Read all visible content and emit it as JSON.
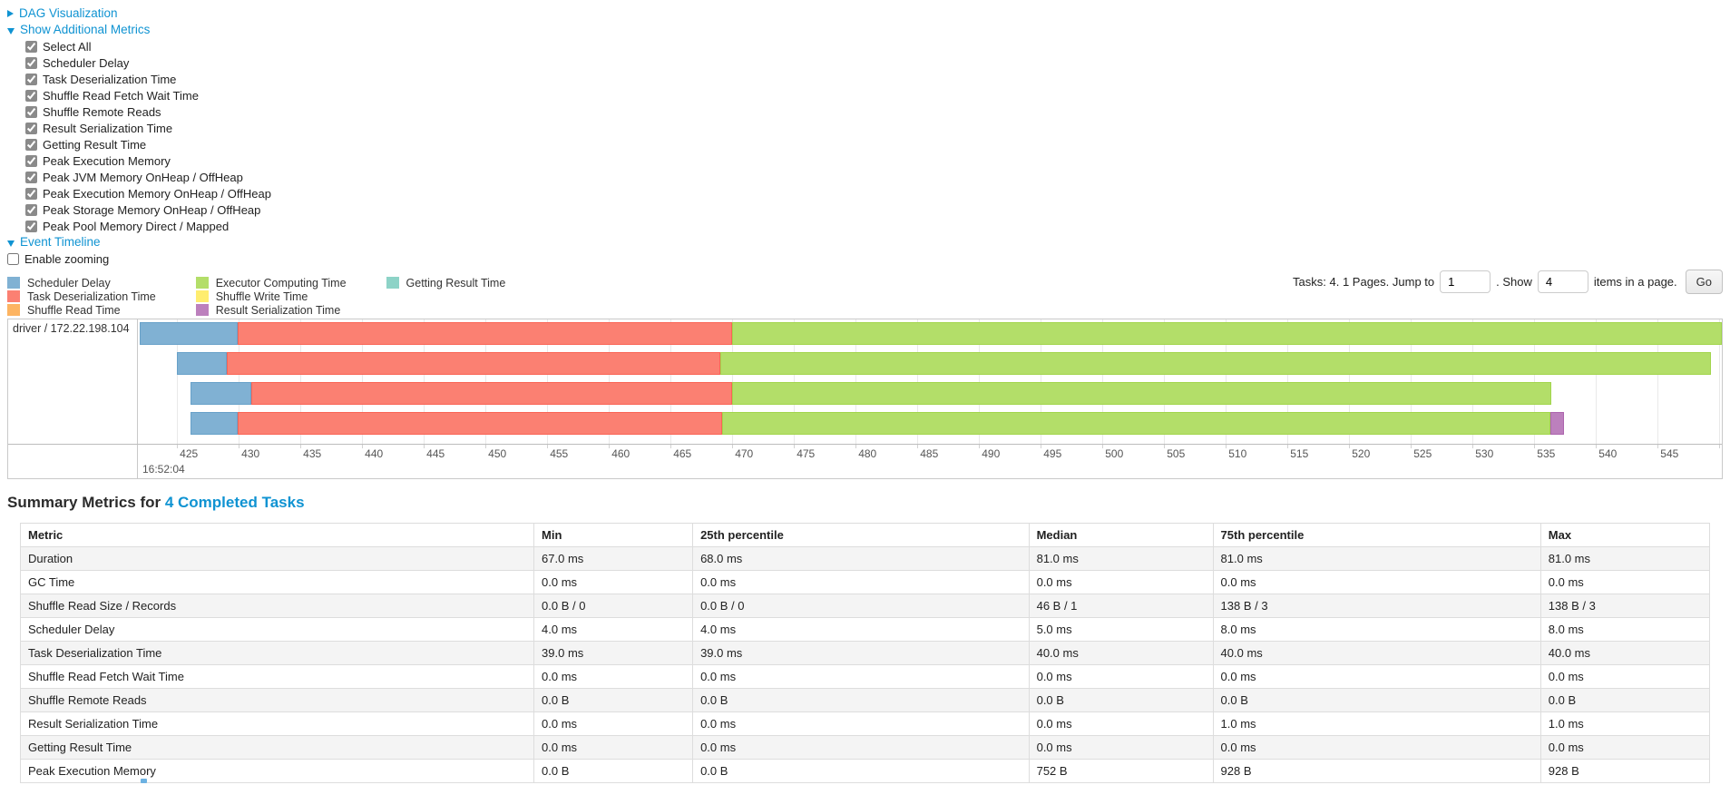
{
  "sections": {
    "dag": {
      "label": "DAG Visualization"
    },
    "additional_metrics": {
      "label": "Show Additional Metrics"
    },
    "metric_checkboxes": [
      {
        "label": "Select All",
        "checked": true
      },
      {
        "label": "Scheduler Delay",
        "checked": true
      },
      {
        "label": "Task Deserialization Time",
        "checked": true
      },
      {
        "label": "Shuffle Read Fetch Wait Time",
        "checked": true
      },
      {
        "label": "Shuffle Remote Reads",
        "checked": true
      },
      {
        "label": "Result Serialization Time",
        "checked": true
      },
      {
        "label": "Getting Result Time",
        "checked": true
      },
      {
        "label": "Peak Execution Memory",
        "checked": true
      },
      {
        "label": "Peak JVM Memory OnHeap / OffHeap",
        "checked": true
      },
      {
        "label": "Peak Execution Memory OnHeap / OffHeap",
        "checked": true
      },
      {
        "label": "Peak Storage Memory OnHeap / OffHeap",
        "checked": true
      },
      {
        "label": "Peak Pool Memory Direct / Mapped",
        "checked": true
      }
    ],
    "event_timeline": {
      "label": "Event Timeline"
    },
    "enable_zooming": {
      "label": "Enable zooming",
      "checked": false
    }
  },
  "pagination": {
    "prefix": "Tasks: 4. 1 Pages. Jump to",
    "jump_value": "1",
    "mid": ". Show",
    "show_value": "4",
    "suffix": "items in a page.",
    "go_label": "Go"
  },
  "legend": [
    {
      "type": "scheduler_delay",
      "label": "Scheduler Delay"
    },
    {
      "type": "task_deserialization",
      "label": "Task Deserialization Time"
    },
    {
      "type": "shuffle_read",
      "label": "Shuffle Read Time"
    },
    {
      "type": "executor_computing",
      "label": "Executor Computing Time"
    },
    {
      "type": "shuffle_write",
      "label": "Shuffle Write Time"
    },
    {
      "type": "result_serialization",
      "label": "Result Serialization Time"
    },
    {
      "type": "getting_result",
      "label": "Getting Result Time"
    }
  ],
  "colors": {
    "link": "#0f93d2",
    "segments": {
      "scheduler_delay": {
        "fill": "#80B1D3",
        "border": "#68a1c9"
      },
      "task_deserialization": {
        "fill": "#FB8072",
        "border": "#fa6455"
      },
      "shuffle_read": {
        "fill": "#FDB462",
        "border": "#fca53e"
      },
      "executor_computing": {
        "fill": "#B3DE69",
        "border": "#a2d54c"
      },
      "shuffle_write": {
        "fill": "#FFED6F",
        "border": "#ffe83f"
      },
      "result_serialization": {
        "fill": "#BC80BD",
        "border": "#ad64ae"
      },
      "getting_result": {
        "fill": "#8DD3C7",
        "border": "#6fc7b8"
      }
    }
  },
  "chart_data": {
    "type": "timeline",
    "group_label": "driver / 172.22.198.104",
    "axis": {
      "domain_start": 421.9,
      "domain_end": 550.2,
      "tick_start": 425,
      "tick_end": 550,
      "tick_step": 5,
      "major_label": "16:52:04"
    },
    "tasks": [
      {
        "name": "task-0",
        "segments": [
          {
            "type": "scheduler_delay",
            "start": 422.0,
            "end": 429.9
          },
          {
            "type": "task_deserialization",
            "start": 429.9,
            "end": 470.0
          },
          {
            "type": "executor_computing",
            "start": 470.0,
            "end": 550.2
          }
        ]
      },
      {
        "name": "task-1",
        "segments": [
          {
            "type": "scheduler_delay",
            "start": 425.0,
            "end": 429.0
          },
          {
            "type": "task_deserialization",
            "start": 429.0,
            "end": 469.0
          },
          {
            "type": "executor_computing",
            "start": 469.0,
            "end": 549.3
          }
        ]
      },
      {
        "name": "task-2",
        "segments": [
          {
            "type": "scheduler_delay",
            "start": 426.1,
            "end": 431.0
          },
          {
            "type": "task_deserialization",
            "start": 431.0,
            "end": 470.0
          },
          {
            "type": "executor_computing",
            "start": 470.0,
            "end": 536.4
          }
        ]
      },
      {
        "name": "task-3",
        "segments": [
          {
            "type": "scheduler_delay",
            "start": 426.1,
            "end": 429.9
          },
          {
            "type": "task_deserialization",
            "start": 429.9,
            "end": 469.2
          },
          {
            "type": "executor_computing",
            "start": 469.2,
            "end": 536.3
          },
          {
            "type": "result_serialization",
            "start": 536.3,
            "end": 537.4
          }
        ]
      }
    ]
  },
  "summary": {
    "title_prefix": "Summary Metrics for ",
    "title_link": "4 Completed Tasks",
    "table": {
      "headers": [
        "Metric",
        "Min",
        "25th percentile",
        "Median",
        "75th percentile",
        "Max"
      ],
      "col_widths": [
        "30.4%",
        "9.4%",
        "19.9%",
        "10.9%",
        "19.4%",
        "10.0%"
      ],
      "rows": [
        [
          "Duration",
          "67.0 ms",
          "68.0 ms",
          "81.0 ms",
          "81.0 ms",
          "81.0 ms"
        ],
        [
          "GC Time",
          "0.0 ms",
          "0.0 ms",
          "0.0 ms",
          "0.0 ms",
          "0.0 ms"
        ],
        [
          "Shuffle Read Size / Records",
          "0.0 B / 0",
          "0.0 B / 0",
          "46 B / 1",
          "138 B / 3",
          "138 B / 3"
        ],
        [
          "Scheduler Delay",
          "4.0 ms",
          "4.0 ms",
          "5.0 ms",
          "8.0 ms",
          "8.0 ms"
        ],
        [
          "Task Deserialization Time",
          "39.0 ms",
          "39.0 ms",
          "40.0 ms",
          "40.0 ms",
          "40.0 ms"
        ],
        [
          "Shuffle Read Fetch Wait Time",
          "0.0 ms",
          "0.0 ms",
          "0.0 ms",
          "0.0 ms",
          "0.0 ms"
        ],
        [
          "Shuffle Remote Reads",
          "0.0 B",
          "0.0 B",
          "0.0 B",
          "0.0 B",
          "0.0 B"
        ],
        [
          "Result Serialization Time",
          "0.0 ms",
          "0.0 ms",
          "0.0 ms",
          "1.0 ms",
          "1.0 ms"
        ],
        [
          "Getting Result Time",
          "0.0 ms",
          "0.0 ms",
          "0.0 ms",
          "0.0 ms",
          "0.0 ms"
        ],
        [
          "Peak Execution Memory",
          "0.0 B",
          "0.0 B",
          "752 B",
          "928 B",
          "928 B"
        ]
      ]
    }
  }
}
